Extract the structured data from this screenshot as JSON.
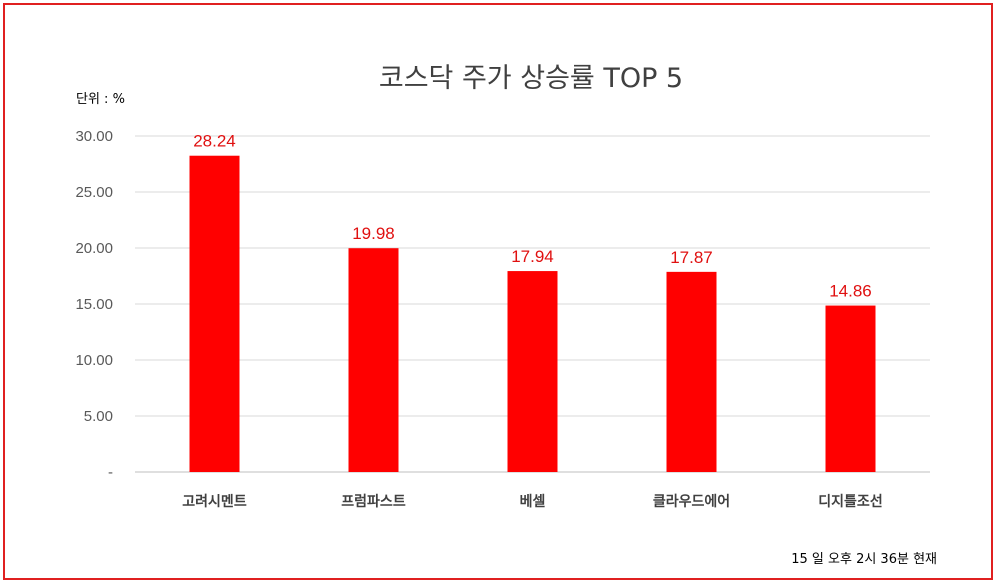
{
  "chart_data": {
    "type": "bar",
    "title": "코스닥 주가 상승률 TOP 5",
    "unit_label": "단위 : %",
    "categories": [
      "고려시멘트",
      "프럼파스트",
      "베셀",
      "클라우드에어",
      "디지틀조선"
    ],
    "values": [
      28.24,
      19.98,
      17.94,
      17.87,
      14.86
    ],
    "value_labels": [
      "28.24",
      "19.98",
      "17.94",
      "17.87",
      "14.86"
    ],
    "y_ticks": [
      0,
      5,
      10,
      15,
      20,
      25,
      30
    ],
    "y_tick_labels": [
      "-",
      "5.00",
      "10.00",
      "15.00",
      "20.00",
      "25.00",
      "30.00"
    ],
    "ylim": [
      0,
      30
    ],
    "grid": true,
    "legend": "none",
    "bar_color": "#ff0000",
    "label_color": "#e01010",
    "footnote": "15 일  오후 2시 36분 현재"
  },
  "colors": {
    "frame": "#e02020",
    "grid": "#d9d9d9"
  }
}
